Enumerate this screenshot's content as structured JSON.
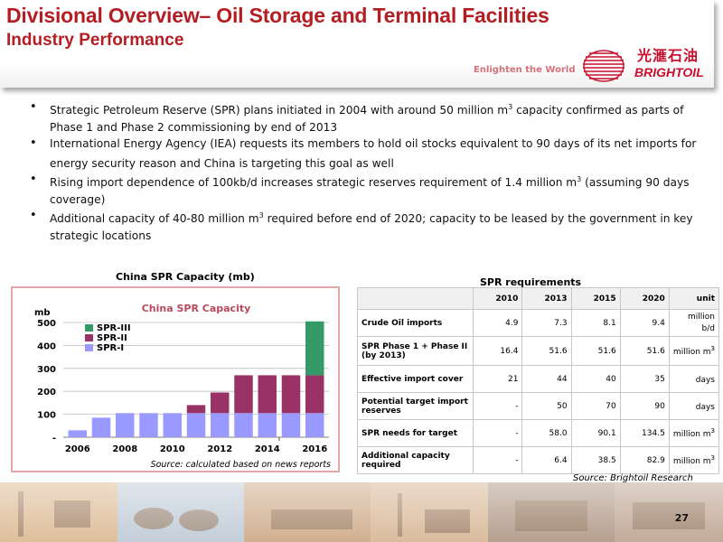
{
  "header": {
    "title": "Divisional Overview– Oil Storage and Terminal Facilities",
    "subtitle": "Industry Performance",
    "tagline": "Enlighten the World",
    "logo_cn": "光滙石油",
    "logo_en": "BRIGHTOIL",
    "brand_color": "#b41e23"
  },
  "bullets": [
    {
      "pre": "Strategic Petroleum Reserve (SPR) plans initiated in 2004 with around 50 million m",
      "sup": "3",
      "post": " capacity confirmed as parts of Phase 1 and Phase 2 commissioning by end of 2013"
    },
    {
      "pre": "International Energy Agency (IEA) requests its members to  hold oil stocks equivalent to 90 days of its net imports for energy security reason and China is targeting this goal as well",
      "sup": "",
      "post": ""
    },
    {
      "pre": "Rising import dependence of 100kb/d increases strategic reserves requirement of 1.4 million m",
      "sup": "3",
      "post": " (assuming 90 days coverage)"
    },
    {
      "pre": "Additional capacity of 40-80 million m",
      "sup": "3",
      "post": " required before end of 2020; capacity to be leased by the government in key strategic locations"
    }
  ],
  "chart_section": {
    "heading": "China SPR Capacity (mb)"
  },
  "chart_data": {
    "type": "bar",
    "stacked": true,
    "title": "China SPR Capacity",
    "ylabel": "mb",
    "ylim": [
      0,
      500
    ],
    "yticks": [
      0,
      100,
      200,
      300,
      400,
      500
    ],
    "ytick_labels": [
      "-",
      "100",
      "200",
      "300",
      "400",
      "500"
    ],
    "x": [
      2005,
      2006,
      2007,
      2008,
      2009,
      2010,
      2011,
      2012,
      2013,
      2014,
      2015
    ],
    "xtick_labels": [
      "2006",
      "2008",
      "2010",
      "2012",
      "2014",
      "2016"
    ],
    "legend_position": "top-left",
    "grid": true,
    "annotation": "Source: calculated based on news reports",
    "series": [
      {
        "name": "SPR-I",
        "color": "#9999ff",
        "values": [
          30,
          85,
          105,
          105,
          105,
          105,
          105,
          105,
          105,
          105,
          105
        ]
      },
      {
        "name": "SPR-II",
        "color": "#993366",
        "values": [
          0,
          0,
          0,
          0,
          0,
          35,
          90,
          165,
          165,
          165,
          165
        ]
      },
      {
        "name": "SPR-III",
        "color": "#339966",
        "values": [
          0,
          0,
          0,
          0,
          0,
          0,
          0,
          0,
          0,
          0,
          235
        ]
      }
    ]
  },
  "table": {
    "title": "SPR requirements",
    "columns": [
      "",
      "2010",
      "2013",
      "2015",
      "2020",
      "unit"
    ],
    "rows": [
      {
        "label": "Crude Oil imports",
        "values": [
          "4.9",
          "7.3",
          "8.1",
          "9.4"
        ],
        "unit": "million b/d",
        "unit_sup": ""
      },
      {
        "label": "SPR Phase 1 + Phase II (by 2013)",
        "values": [
          "16.4",
          "51.6",
          "51.6",
          "51.6"
        ],
        "unit": "million m",
        "unit_sup": "3"
      },
      {
        "label": "Effective import cover",
        "values": [
          "21",
          "44",
          "40",
          "35"
        ],
        "unit": "days",
        "unit_sup": ""
      },
      {
        "label": "Potential target import reserves",
        "values": [
          "-",
          "50",
          "70",
          "90"
        ],
        "unit": "days",
        "unit_sup": ""
      },
      {
        "label": "SPR needs for target",
        "values": [
          "-",
          "58.0",
          "90.1",
          "134.5"
        ],
        "unit": "million m",
        "unit_sup": "3"
      },
      {
        "label": "Additional capacity required",
        "values": [
          "-",
          "6.4",
          "38.5",
          "82.9"
        ],
        "unit": "million m",
        "unit_sup": "3"
      }
    ],
    "source": "Source: Brightoil Research"
  },
  "footer": {
    "page_number": "27"
  }
}
